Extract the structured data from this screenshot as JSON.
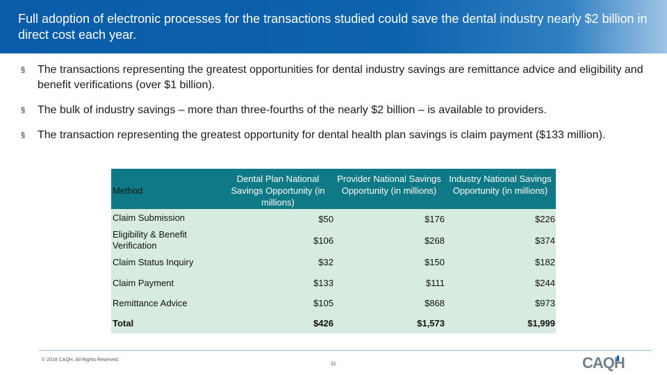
{
  "header": {
    "title": "Full adoption of electronic processes for the transactions studied could save the dental industry nearly $2 billion in direct cost each year."
  },
  "bullets": [
    "The transactions representing the greatest opportunities for dental industry savings are remittance advice and eligibility and benefit verifications (over $1 billion).",
    "The bulk of industry savings – more than three-fourths of the nearly $2 billion – is available to providers.",
    "The transaction representing the greatest opportunity for dental health plan savings is claim payment ($133 million)."
  ],
  "bullet_marker": "§",
  "table": {
    "headers": {
      "method": "Method",
      "plan": "Dental Plan National Savings Opportunity (in millions)",
      "provider": "Provider National Savings Opportunity (in millions)",
      "industry": "Industry National Savings Opportunity (in millions)"
    },
    "rows": [
      {
        "method": "Claim Submission",
        "plan": "$50",
        "provider": "$176",
        "industry": "$226"
      },
      {
        "method": "Eligibility & Benefit Verification",
        "plan": "$106",
        "provider": "$268",
        "industry": "$374"
      },
      {
        "method": "Claim Status Inquiry",
        "plan": "$32",
        "provider": "$150",
        "industry": "$182"
      },
      {
        "method": "Claim Payment",
        "plan": "$133",
        "provider": "$111",
        "industry": "$244"
      },
      {
        "method": "Remittance Advice",
        "plan": "$105",
        "provider": "$868",
        "industry": "$973"
      },
      {
        "method": "Total",
        "plan": "$426",
        "provider": "$1,573",
        "industry": "$1,999"
      }
    ]
  },
  "footer": {
    "copyright": "© 2018 CAQH, All Rights Reserved.",
    "page_number": "31",
    "logo_text": "CAQH"
  },
  "colors": {
    "header_blue": "#0a5ca8",
    "table_header": "#0f7a86",
    "table_body": "#d7ebe0",
    "logo_gray": "#6f7f8a"
  }
}
